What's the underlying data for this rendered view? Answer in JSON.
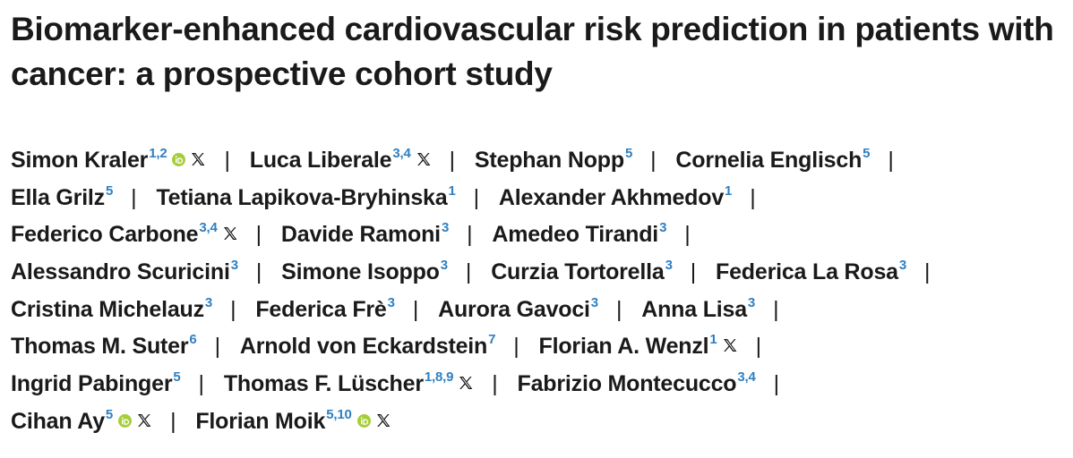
{
  "title": "Biomarker-enhanced cardiovascular risk prediction in patients with cancer: a prospective cohort study",
  "separator": "|",
  "colors": {
    "text": "#1a1a1a",
    "affiliation": "#2f7fc1",
    "orcid": "#a6ce39"
  },
  "authors": [
    {
      "name": "Simon Kraler",
      "aff": "1,2",
      "orcid": true,
      "x": true
    },
    {
      "name": "Luca Liberale",
      "aff": "3,4",
      "orcid": false,
      "x": true
    },
    {
      "name": "Stephan Nopp",
      "aff": "5",
      "orcid": false,
      "x": false
    },
    {
      "name": "Cornelia Englisch",
      "aff": "5",
      "orcid": false,
      "x": false
    },
    {
      "name": "Ella Grilz",
      "aff": "5",
      "orcid": false,
      "x": false
    },
    {
      "name": "Tetiana Lapikova-Bryhinska",
      "aff": "1",
      "orcid": false,
      "x": false
    },
    {
      "name": "Alexander Akhmedov",
      "aff": "1",
      "orcid": false,
      "x": false
    },
    {
      "name": "Federico Carbone",
      "aff": "3,4",
      "orcid": false,
      "x": true
    },
    {
      "name": "Davide Ramoni",
      "aff": "3",
      "orcid": false,
      "x": false
    },
    {
      "name": "Amedeo Tirandi",
      "aff": "3",
      "orcid": false,
      "x": false
    },
    {
      "name": "Alessandro Scuricini",
      "aff": "3",
      "orcid": false,
      "x": false
    },
    {
      "name": "Simone Isoppo",
      "aff": "3",
      "orcid": false,
      "x": false
    },
    {
      "name": "Curzia Tortorella",
      "aff": "3",
      "orcid": false,
      "x": false
    },
    {
      "name": "Federica La Rosa",
      "aff": "3",
      "orcid": false,
      "x": false
    },
    {
      "name": "Cristina Michelauz",
      "aff": "3",
      "orcid": false,
      "x": false
    },
    {
      "name": "Federica Frè",
      "aff": "3",
      "orcid": false,
      "x": false
    },
    {
      "name": "Aurora Gavoci",
      "aff": "3",
      "orcid": false,
      "x": false
    },
    {
      "name": "Anna Lisa",
      "aff": "3",
      "orcid": false,
      "x": false
    },
    {
      "name": "Thomas M. Suter",
      "aff": "6",
      "orcid": false,
      "x": false
    },
    {
      "name": "Arnold von Eckardstein",
      "aff": "7",
      "orcid": false,
      "x": false
    },
    {
      "name": "Florian A. Wenzl",
      "aff": "1",
      "orcid": false,
      "x": true
    },
    {
      "name": "Ingrid Pabinger",
      "aff": "5",
      "orcid": false,
      "x": false
    },
    {
      "name": "Thomas F. Lüscher",
      "aff": "1,8,9",
      "orcid": false,
      "x": true
    },
    {
      "name": "Fabrizio Montecucco",
      "aff": "3,4",
      "orcid": false,
      "x": false
    },
    {
      "name": "Cihan Ay",
      "aff": "5",
      "orcid": true,
      "x": true
    },
    {
      "name": "Florian Moik",
      "aff": "5,10",
      "orcid": true,
      "x": true
    }
  ]
}
